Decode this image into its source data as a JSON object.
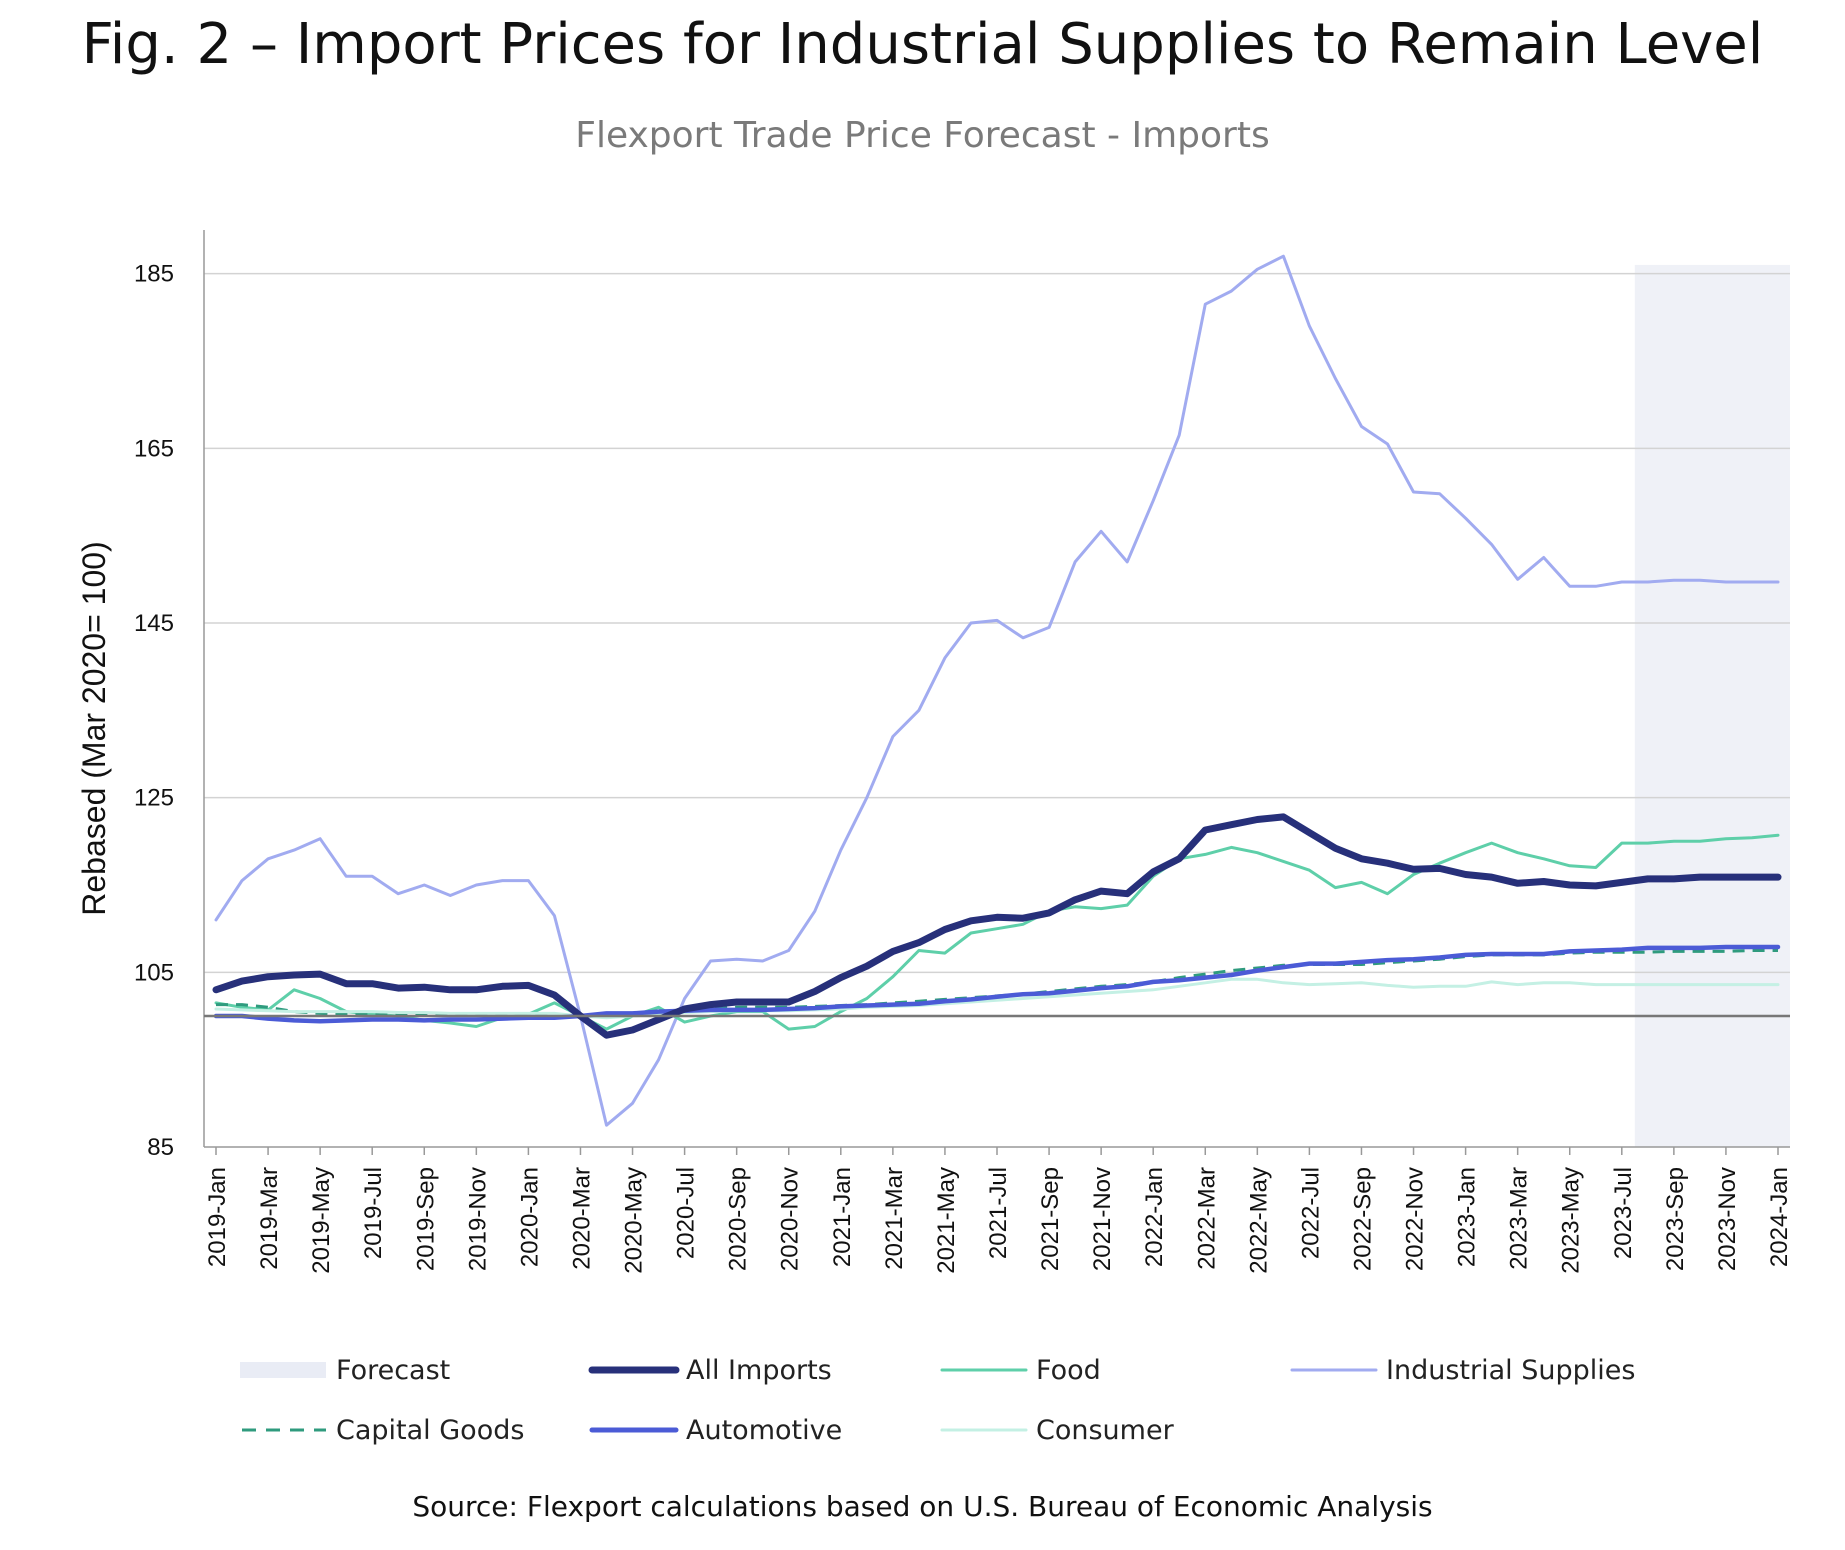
{
  "title": "Fig. 2 – Import Prices for Industrial Supplies to Remain Level",
  "source": "Source: Flexport calculations based on U.S. Bureau of Economic Analysis",
  "colors": {
    "all_imports": "#27307a",
    "food": "#5ecfa9",
    "industrial_supplies": "#a1abf0",
    "capital_goods": "#2f9b7e",
    "automotive": "#4b5bd6",
    "consumer": "#c4f0e4",
    "forecast": "#eff1f7",
    "grid": "#d3d3d3",
    "baseline": "#777777"
  },
  "legend": [
    {
      "key": "forecast",
      "label": "Forecast",
      "style": "band"
    },
    {
      "key": "all_imports",
      "label": "All Imports",
      "style": "thick"
    },
    {
      "key": "food",
      "label": "Food",
      "style": "line"
    },
    {
      "key": "industrial_supplies",
      "label": "Industrial Supplies",
      "style": "line"
    },
    {
      "key": "capital_goods",
      "label": "Capital Goods",
      "style": "dash"
    },
    {
      "key": "automotive",
      "label": "Automotive",
      "style": "mid"
    },
    {
      "key": "consumer",
      "label": "Consumer",
      "style": "line"
    }
  ],
  "chart_data": {
    "type": "line",
    "title": "Flexport Trade Price Forecast - Imports",
    "xlabel": "",
    "ylabel": "Rebased (Mar 2020= 100)",
    "ylim": [
      85,
      190
    ],
    "yticks": [
      85,
      105,
      125,
      145,
      165,
      185
    ],
    "baseline": 100,
    "grid": true,
    "forecast_range": [
      "2023-Aug",
      "2024-Jan"
    ],
    "x": [
      "2019-Jan",
      "2019-Feb",
      "2019-Mar",
      "2019-Apr",
      "2019-May",
      "2019-Jun",
      "2019-Jul",
      "2019-Aug",
      "2019-Sep",
      "2019-Oct",
      "2019-Nov",
      "2019-Dec",
      "2020-Jan",
      "2020-Feb",
      "2020-Mar",
      "2020-Apr",
      "2020-May",
      "2020-Jun",
      "2020-Jul",
      "2020-Aug",
      "2020-Sep",
      "2020-Oct",
      "2020-Nov",
      "2020-Dec",
      "2021-Jan",
      "2021-Feb",
      "2021-Mar",
      "2021-Apr",
      "2021-May",
      "2021-Jun",
      "2021-Jul",
      "2021-Aug",
      "2021-Sep",
      "2021-Oct",
      "2021-Nov",
      "2021-Dec",
      "2022-Jan",
      "2022-Feb",
      "2022-Mar",
      "2022-Apr",
      "2022-May",
      "2022-Jun",
      "2022-Jul",
      "2022-Aug",
      "2022-Sep",
      "2022-Oct",
      "2022-Nov",
      "2022-Dec",
      "2023-Jan",
      "2023-Feb",
      "2023-Mar",
      "2023-Apr",
      "2023-May",
      "2023-Jun",
      "2023-Jul",
      "2023-Aug",
      "2023-Sep",
      "2023-Oct",
      "2023-Nov",
      "2023-Dec",
      "2024-Jan"
    ],
    "xtick_labels": [
      "2019-Jan",
      "2019-Mar",
      "2019-May",
      "2019-Jul",
      "2019-Sep",
      "2019-Nov",
      "2020-Jan",
      "2020-Mar",
      "2020-May",
      "2020-Jul",
      "2020-Sep",
      "2020-Nov",
      "2021-Jan",
      "2021-Mar",
      "2021-May",
      "2021-Jul",
      "2021-Sep",
      "2021-Nov",
      "2022-Jan",
      "2022-Mar",
      "2022-May",
      "2022-Jul",
      "2022-Sep",
      "2022-Nov",
      "2023-Jan",
      "2023-Mar",
      "2023-May",
      "2023-Jul",
      "2023-Sep",
      "2023-Nov",
      "2024-Jan"
    ],
    "series": [
      {
        "key": "industrial_supplies",
        "name": "Industrial Supplies",
        "width": 3,
        "values": [
          111,
          115.5,
          118,
          119,
          120.3,
          116,
          116,
          114,
          115,
          113.8,
          115,
          115.5,
          115.5,
          111.5,
          100,
          87.5,
          90,
          95,
          102,
          106.3,
          106.5,
          106.3,
          107.5,
          112,
          119,
          125,
          132,
          135,
          141,
          145,
          145.3,
          143.3,
          144.5,
          152,
          155.5,
          152,
          159,
          166.5,
          181.5,
          183,
          185.5,
          187,
          179,
          173,
          167.5,
          165.5,
          160,
          159.8,
          157,
          154,
          150,
          152.5,
          149.2,
          149.2,
          149.7,
          149.7,
          149.9,
          149.9,
          149.7,
          149.7,
          149.7
        ]
      },
      {
        "key": "food",
        "name": "Food",
        "width": 3,
        "values": [
          101.5,
          101,
          100.7,
          103,
          102,
          100.5,
          100.2,
          100,
          99.5,
          99.2,
          98.8,
          99.8,
          100.2,
          101.5,
          100,
          98.5,
          100,
          101,
          99.3,
          100,
          100.5,
          100.5,
          98.5,
          98.8,
          100.5,
          102,
          104.5,
          107.5,
          107.2,
          109.5,
          110,
          110.5,
          112,
          112.5,
          112.3,
          112.7,
          116,
          118,
          118.5,
          119.3,
          118.7,
          117.7,
          116.7,
          114.7,
          115.3,
          114,
          116.2,
          117.5,
          118.7,
          119.8,
          118.7,
          118,
          117.2,
          117,
          119.8,
          119.8,
          120,
          120,
          120.3,
          120.4,
          120.7
        ]
      },
      {
        "key": "capital_goods",
        "name": "Capital Goods",
        "width": 3,
        "dash": "12 8",
        "values": [
          101.3,
          101.3,
          101,
          100.5,
          100.3,
          100.2,
          100.2,
          100.1,
          100.1,
          100.1,
          100.1,
          100.1,
          100.1,
          100.1,
          100,
          100.1,
          100.2,
          100.4,
          100.6,
          100.8,
          101,
          101,
          101,
          101.1,
          101.2,
          101.3,
          101.5,
          101.7,
          101.9,
          102.1,
          102.3,
          102.5,
          102.8,
          103.1,
          103.4,
          103.6,
          103.9,
          104.4,
          104.8,
          105.2,
          105.5,
          105.8,
          105.9,
          105.9,
          105.9,
          106.1,
          106.3,
          106.5,
          106.8,
          107,
          107,
          107,
          107.2,
          107.3,
          107.3,
          107.3,
          107.4,
          107.4,
          107.4,
          107.5,
          107.5
        ]
      },
      {
        "key": "consumer",
        "name": "Consumer",
        "width": 3,
        "values": [
          100.8,
          100.7,
          100.6,
          100.5,
          100.5,
          100.5,
          100.5,
          100.4,
          100.4,
          100.3,
          100.3,
          100.3,
          100.3,
          100.3,
          100,
          99.8,
          100,
          100.2,
          100.4,
          100.5,
          100.6,
          100.6,
          100.6,
          100.7,
          100.8,
          101,
          101.1,
          101.2,
          101.4,
          101.6,
          101.8,
          102,
          102.2,
          102.4,
          102.6,
          102.8,
          103,
          103.4,
          103.8,
          104.2,
          104.2,
          103.8,
          103.6,
          103.7,
          103.8,
          103.5,
          103.3,
          103.4,
          103.4,
          103.9,
          103.6,
          103.8,
          103.8,
          103.6,
          103.6,
          103.6,
          103.6,
          103.6,
          103.6,
          103.6,
          103.6
        ]
      },
      {
        "key": "automotive",
        "name": "Automotive",
        "width": 4.5,
        "values": [
          100,
          100,
          99.7,
          99.5,
          99.4,
          99.5,
          99.6,
          99.6,
          99.5,
          99.6,
          99.6,
          99.7,
          99.8,
          99.8,
          100,
          100.3,
          100.3,
          100.5,
          100.6,
          100.7,
          100.7,
          100.7,
          100.8,
          100.9,
          101.1,
          101.2,
          101.3,
          101.4,
          101.7,
          101.9,
          102.2,
          102.5,
          102.6,
          102.9,
          103.2,
          103.4,
          103.9,
          104.1,
          104.4,
          104.7,
          105.2,
          105.6,
          106,
          106,
          106.2,
          106.4,
          106.5,
          106.7,
          107,
          107.1,
          107.1,
          107.1,
          107.4,
          107.5,
          107.6,
          107.8,
          107.8,
          107.8,
          107.9,
          107.9,
          107.9
        ]
      },
      {
        "key": "all_imports",
        "name": "All Imports",
        "width": 7,
        "values": [
          103,
          104,
          104.5,
          104.7,
          104.8,
          103.7,
          103.7,
          103.2,
          103.3,
          103,
          103,
          103.4,
          103.5,
          102.4,
          100,
          97.8,
          98.4,
          99.6,
          100.8,
          101.3,
          101.6,
          101.6,
          101.6,
          102.8,
          104.4,
          105.7,
          107.4,
          108.4,
          109.9,
          110.9,
          111.3,
          111.2,
          111.8,
          113.3,
          114.3,
          114,
          116.5,
          118,
          121.3,
          121.9,
          122.5,
          122.8,
          121,
          119.2,
          118,
          117.5,
          116.8,
          116.9,
          116.2,
          115.9,
          115.2,
          115.4,
          115,
          114.9,
          115.3,
          115.7,
          115.7,
          115.9,
          115.9,
          115.9,
          115.9
        ]
      }
    ]
  }
}
